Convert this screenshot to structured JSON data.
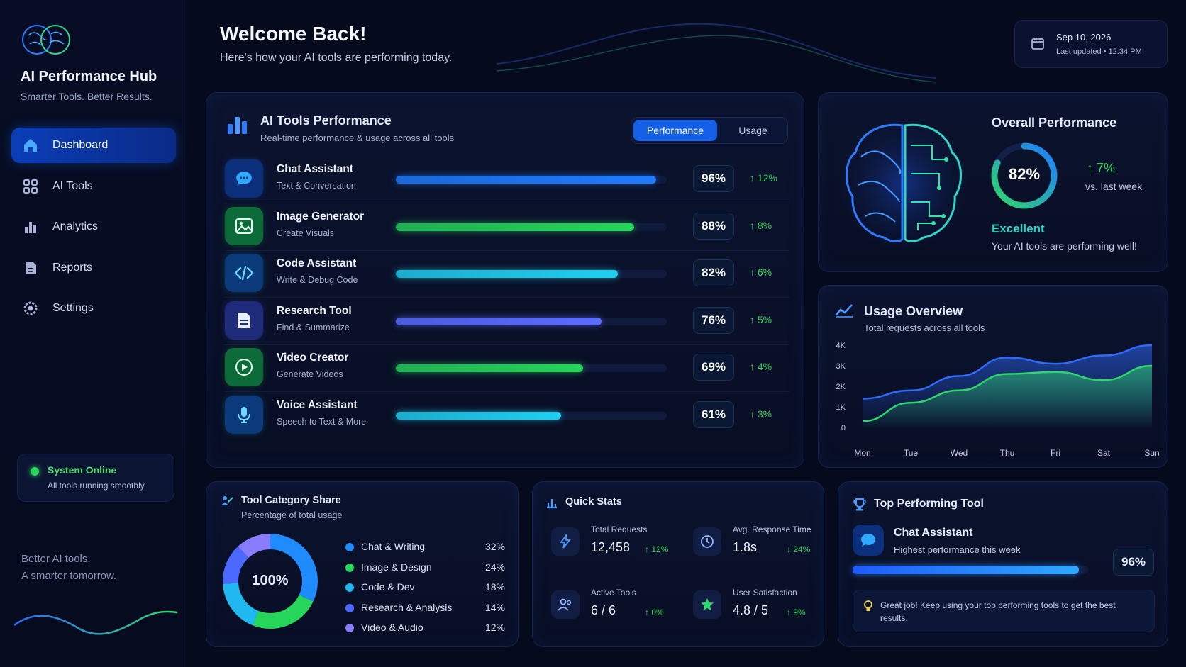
{
  "brand": {
    "title": "AI Performance Hub",
    "subtitle": "Smarter Tools. Better Results."
  },
  "nav": [
    {
      "label": "Dashboard",
      "icon": "home-icon",
      "active": true
    },
    {
      "label": "AI Tools",
      "icon": "grid-icon",
      "active": false
    },
    {
      "label": "Analytics",
      "icon": "bar-chart-icon",
      "active": false
    },
    {
      "label": "Reports",
      "icon": "document-icon",
      "active": false
    },
    {
      "label": "Settings",
      "icon": "gear-icon",
      "active": false
    }
  ],
  "status": {
    "title": "System Online",
    "subtitle": "All tools running smoothly",
    "color": "#27d65a"
  },
  "tagline": {
    "line1": "Better AI tools.",
    "line2": "A smarter tomorrow."
  },
  "header": {
    "title": "Welcome Back!",
    "subtitle": "Here's how your AI tools are performing today.",
    "date": "Sep 10, 2026",
    "updated": "Last updated • 12:34 PM"
  },
  "performance": {
    "title": "AI Tools Performance",
    "subtitle": "Real-time performance & usage across all tools",
    "tabs": {
      "active": "Performance",
      "inactive": "Usage"
    },
    "tools": [
      {
        "name": "Chat Assistant",
        "desc": "Text & Conversation",
        "value": 96,
        "pct": "96%",
        "delta": "↑ 12%",
        "color": "#1f7bff",
        "icon": "chat-bubble-icon"
      },
      {
        "name": "Image Generator",
        "desc": "Create Visuals",
        "value": 88,
        "pct": "88%",
        "delta": "↑ 8%",
        "color": "#25d65a",
        "icon": "image-icon"
      },
      {
        "name": "Code Assistant",
        "desc": "Write & Debug Code",
        "value": 82,
        "pct": "82%",
        "delta": "↑ 6%",
        "color": "#1fd0f0",
        "icon": "code-icon"
      },
      {
        "name": "Research Tool",
        "desc": "Find & Summarize",
        "value": 76,
        "pct": "76%",
        "delta": "↑ 5%",
        "color": "#5b6cff",
        "icon": "document-icon"
      },
      {
        "name": "Video Creator",
        "desc": "Generate Videos",
        "value": 69,
        "pct": "69%",
        "delta": "↑ 4%",
        "color": "#25d65a",
        "icon": "play-icon"
      },
      {
        "name": "Voice Assistant",
        "desc": "Speech to Text & More",
        "value": 61,
        "pct": "61%",
        "delta": "↑ 3%",
        "color": "#1fd0f0",
        "icon": "microphone-icon"
      }
    ]
  },
  "overall": {
    "title": "Overall Performance",
    "value": 82,
    "value_label": "82%",
    "delta": "↑ 7%",
    "vs": "vs. last week",
    "rating": "Excellent",
    "message": "Your AI tools are performing well!"
  },
  "usage": {
    "title": "Usage Overview",
    "subtitle": "Total requests across all tools"
  },
  "chart_data": {
    "type": "area",
    "categories": [
      "Mon",
      "Tue",
      "Wed",
      "Thu",
      "Fri",
      "Sat",
      "Sun"
    ],
    "y_ticks": [
      "0",
      "1K",
      "2K",
      "3K",
      "4K"
    ],
    "ylim": [
      0,
      4000
    ],
    "series": [
      {
        "color": "#2f6bff",
        "values": [
          1400,
          1800,
          2500,
          3400,
          3100,
          3500,
          4000
        ]
      },
      {
        "color": "#2fd66a",
        "values": [
          300,
          1200,
          1800,
          2600,
          2700,
          2300,
          3000
        ]
      }
    ]
  },
  "category": {
    "title": "Tool Category Share",
    "subtitle": "Percentage of total usage",
    "center": "100%",
    "items": [
      {
        "name": "Chat & Writing",
        "value": 32,
        "label": "32%",
        "color": "#1f8bff"
      },
      {
        "name": "Image & Design",
        "value": 24,
        "label": "24%",
        "color": "#25d65a"
      },
      {
        "name": "Code & Dev",
        "value": 18,
        "label": "18%",
        "color": "#1fb8f0"
      },
      {
        "name": "Research & Analysis",
        "value": 14,
        "label": "14%",
        "color": "#4b68ff"
      },
      {
        "name": "Video & Audio",
        "value": 12,
        "label": "12%",
        "color": "#8a7cff"
      }
    ]
  },
  "quick": {
    "title": "Quick Stats",
    "stats": [
      {
        "label": "Total Requests",
        "value": "12,458",
        "delta": "↑ 12%",
        "icon": "lightning-icon",
        "color": "#30d65a"
      },
      {
        "label": "Avg. Response Time",
        "value": "1.8s",
        "delta": "↓ 24%",
        "icon": "clock-icon",
        "color": "#30d65a"
      },
      {
        "label": "Active Tools",
        "value": "6 / 6",
        "delta": "↑ 0%",
        "icon": "users-icon",
        "color": "#30d65a"
      },
      {
        "label": "User Satisfaction",
        "value": "4.8 / 5",
        "delta": "↑ 9%",
        "icon": "star-icon",
        "color": "#30d65a"
      }
    ]
  },
  "top": {
    "title": "Top Performing Tool",
    "name": "Chat Assistant",
    "subtitle": "Highest performance this week",
    "value": 96,
    "pct": "96%",
    "tip": "Great job! Keep using your top performing tools to get the best results."
  }
}
